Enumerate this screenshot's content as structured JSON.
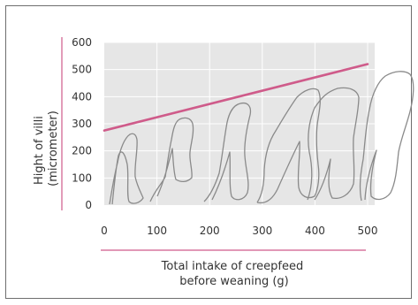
{
  "chart_data": {
    "type": "line",
    "xlabel_lines": [
      "Total intake of creepfeed",
      "before weaning (g)"
    ],
    "ylabel_lines": [
      "Hight of villi",
      "(micrometer)"
    ],
    "xlim": [
      0,
      500
    ],
    "ylim": [
      0,
      600
    ],
    "x_ticks": [
      0,
      100,
      200,
      300,
      400,
      500
    ],
    "y_ticks": [
      0,
      100,
      200,
      300,
      400,
      500,
      600
    ],
    "grid": true,
    "series": [
      {
        "x": [
          0,
          500
        ],
        "y": [
          275,
          520
        ],
        "color": "#cf5b8a"
      }
    ],
    "colors": {
      "plot_background": "#e6e6e6",
      "gridline": "#ffffff",
      "axis_accent": "#cf5b8a",
      "villi_outline": "#8a8a8a"
    }
  }
}
